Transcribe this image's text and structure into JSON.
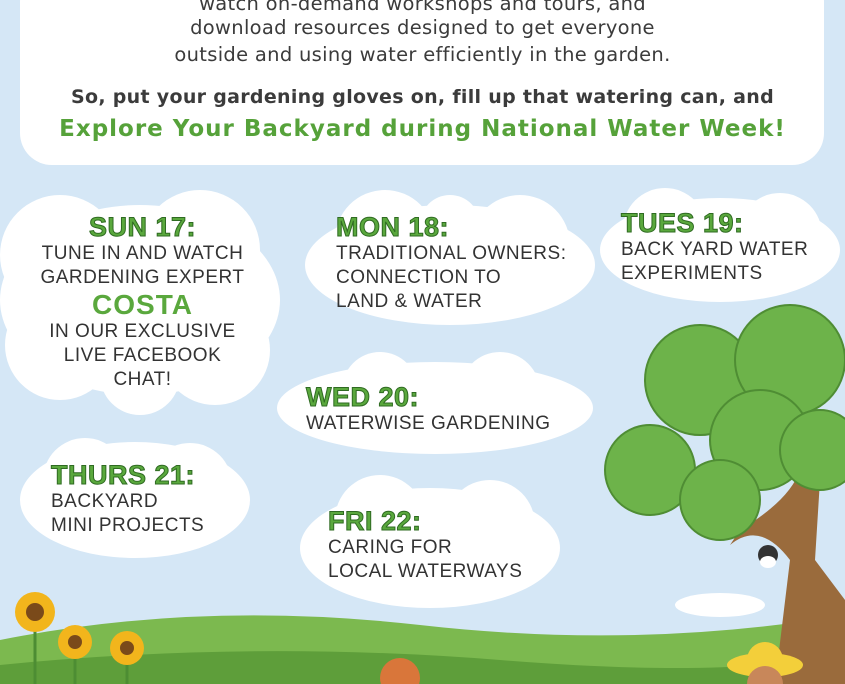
{
  "intro": {
    "lines": [
      "watch on-demand workshops and tours, and",
      "download resources designed to get everyone",
      "outside and using water efficiently in the garden."
    ],
    "cta_line": "So, put your gardening gloves on, fill up that watering can, and",
    "highlight": "Explore Your Backyard during National Water Week!"
  },
  "events": [
    {
      "day": "SUN 17:",
      "lines": [
        "TUNE IN AND WATCH",
        "GARDENING EXPERT"
      ],
      "featured": "COSTA",
      "lines_after": [
        "IN OUR EXCLUSIVE",
        "LIVE FACEBOOK",
        "CHAT!"
      ]
    },
    {
      "day": "MON 18:",
      "lines": [
        "TRADITIONAL OWNERS:",
        "CONNECTION TO",
        "LAND & WATER"
      ]
    },
    {
      "day": "TUES 19:",
      "lines": [
        "BACK YARD WATER",
        "EXPERIMENTS"
      ]
    },
    {
      "day": "WED 20:",
      "lines": [
        "WATERWISE GARDENING"
      ]
    },
    {
      "day": "THURS 21:",
      "lines": [
        "BACKYARD",
        "MINI PROJECTS"
      ]
    },
    {
      "day": "FRI 22:",
      "lines": [
        "CARING FOR",
        "LOCAL WATERWAYS"
      ]
    }
  ],
  "colors": {
    "sky": "#d5e7f6",
    "accent_green": "#5aa83d",
    "text": "#333333",
    "hill": "#6fae45"
  }
}
